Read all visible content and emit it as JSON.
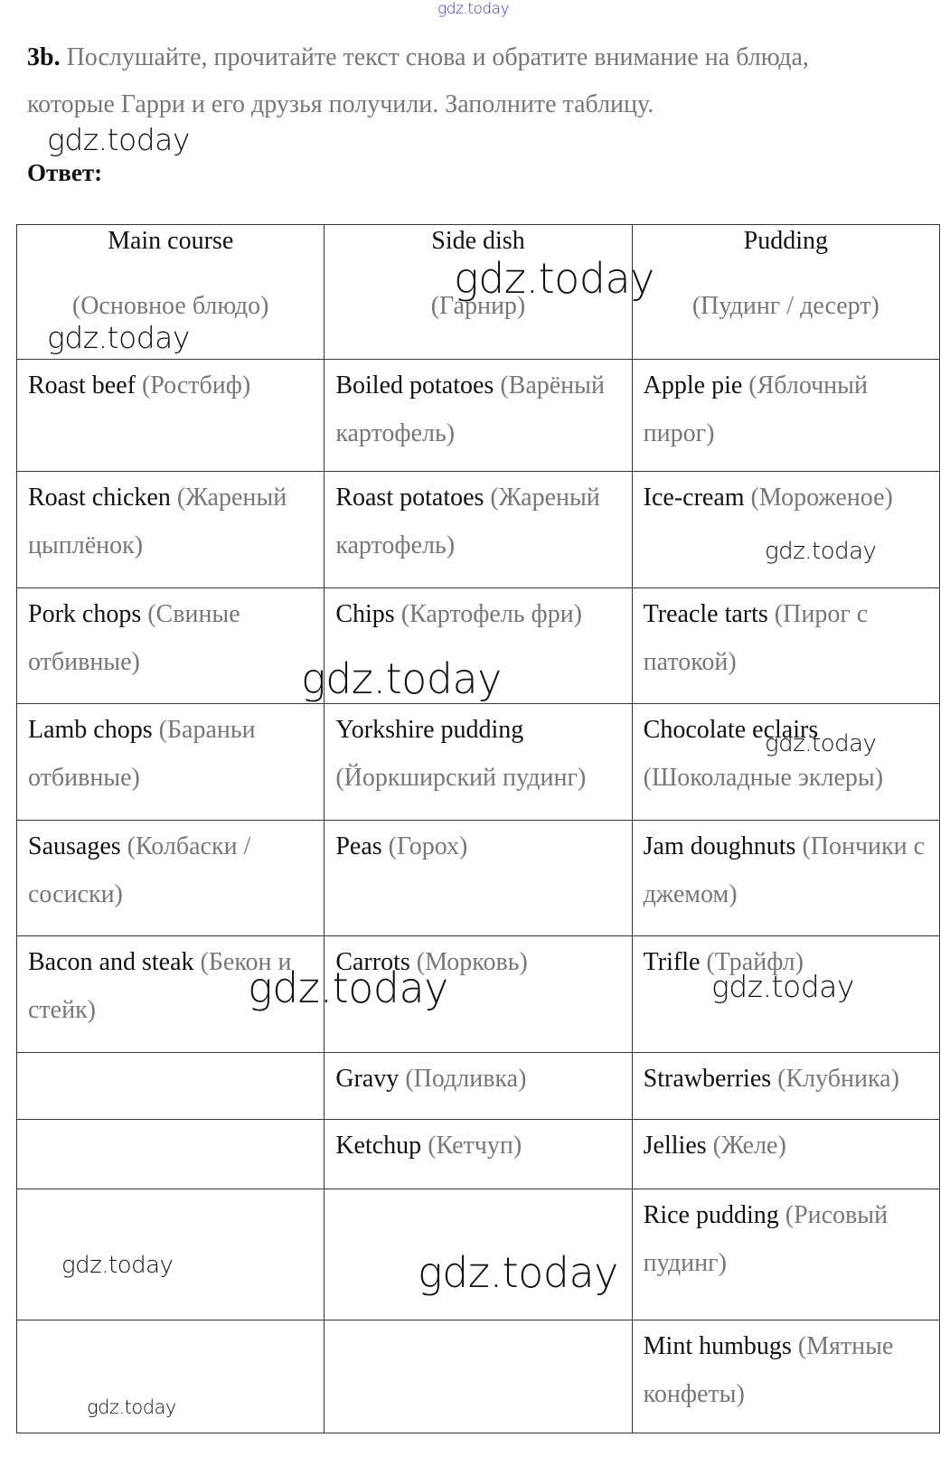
{
  "watermark": "gdz.today",
  "task": {
    "number": "3b.",
    "line1": "Послушайте, прочитайте текст снова и обратите внимание на блюда,",
    "line2": "которые Гарри и его друзья получили. Заполните таблицу."
  },
  "answer_label": "Ответ:",
  "table": {
    "headers": [
      {
        "en": "Main course",
        "ru": "(Основное блюдо)"
      },
      {
        "en": "Side dish",
        "ru": "(Гарнир)"
      },
      {
        "en": "Pudding",
        "ru": "(Пудинг / десерт)"
      }
    ],
    "rows": [
      [
        {
          "en": "Roast beef",
          "ru": "(Ростбиф)"
        },
        {
          "en": "Boiled potatoes",
          "ru": "(Варёный картофель)"
        },
        {
          "en": "Apple pie",
          "ru": "(Яблочный пирог)"
        }
      ],
      [
        {
          "en": "Roast chicken",
          "ru": "(Жареный цыплёнок)"
        },
        {
          "en": "Roast potatoes",
          "ru": "(Жареный картофель)"
        },
        {
          "en": "Ice-cream",
          "ru": "(Мороженое)"
        }
      ],
      [
        {
          "en": "Pork chops",
          "ru": "(Свиные отбивные)"
        },
        {
          "en": "Chips",
          "ru": "(Картофель фри)"
        },
        {
          "en": "Treacle tarts",
          "ru": "(Пирог с патокой)"
        }
      ],
      [
        {
          "en": "Lamb chops",
          "ru": "(Бараньи отбивные)"
        },
        {
          "en": "Yorkshire pudding",
          "ru": "(Йоркширский пудинг)"
        },
        {
          "en": "Chocolate eclairs",
          "ru": "(Шоколадные эклеры)"
        }
      ],
      [
        {
          "en": "Sausages",
          "ru": "(Колбаски / сосиски)"
        },
        {
          "en": "Peas",
          "ru": "(Горох)"
        },
        {
          "en": "Jam doughnuts",
          "ru": "(Пончики с джемом)"
        }
      ],
      [
        {
          "en": "Bacon and steak",
          "ru": "(Бекон и стейк)"
        },
        {
          "en": "Carrots",
          "ru": "(Морковь)"
        },
        {
          "en": "Trifle",
          "ru": "(Трайфл)"
        }
      ],
      [
        {
          "en": "",
          "ru": ""
        },
        {
          "en": "Gravy",
          "ru": "(Подливка)"
        },
        {
          "en": "Strawberries",
          "ru": "(Клубника)"
        }
      ],
      [
        {
          "en": "",
          "ru": ""
        },
        {
          "en": "Ketchup",
          "ru": "(Кетчуп)"
        },
        {
          "en": "Jellies",
          "ru": "(Желе)"
        }
      ],
      [
        {
          "en": "",
          "ru": ""
        },
        {
          "en": "",
          "ru": ""
        },
        {
          "en": "Rice pudding",
          "ru": "(Рисовый пудинг)"
        }
      ],
      [
        {
          "en": "",
          "ru": ""
        },
        {
          "en": "",
          "ru": ""
        },
        {
          "en": "Mint humbugs",
          "ru": "(Мятные конфеты)"
        }
      ]
    ]
  }
}
